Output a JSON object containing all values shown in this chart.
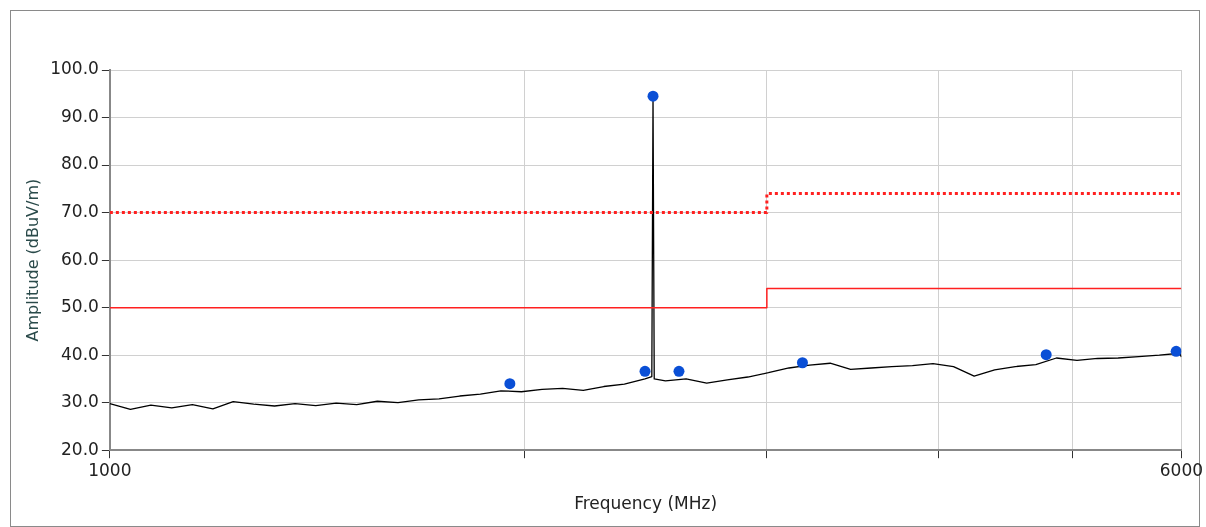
{
  "chart_data": {
    "type": "line",
    "xlabel": "Frequency (MHz)",
    "ylabel": "Amplitude (dBuV/m)",
    "log": "x",
    "grid": true,
    "legend": false,
    "xlim": [
      1000,
      6000
    ],
    "xticks": [
      1000,
      {
        "value": 2000,
        "label": null
      },
      {
        "value": 3000,
        "label": null
      },
      {
        "value": 4000,
        "label": null
      },
      {
        "value": 5000,
        "label": null
      },
      6000
    ],
    "ylim": [
      20,
      100
    ],
    "yticks": [
      {
        "value": 20,
        "label": "20.0"
      },
      {
        "value": 30,
        "label": "30.0"
      },
      {
        "value": 40,
        "label": "40.0"
      },
      {
        "value": 50,
        "label": "50.0"
      },
      {
        "value": 60,
        "label": "60.0"
      },
      {
        "value": 70,
        "label": "70.0"
      },
      {
        "value": 80,
        "label": "80.0"
      },
      {
        "value": 90,
        "label": "90.0"
      },
      {
        "value": 100,
        "label": "100.0"
      }
    ],
    "series": [
      {
        "type": "step",
        "color": "#ff2020",
        "line_style": "dotted",
        "marker": "none",
        "x": [
          1000,
          3000,
          6000
        ],
        "values": [
          70,
          74,
          74
        ]
      },
      {
        "type": "step",
        "color": "#ff2020",
        "line_style": "solid",
        "marker": "none",
        "x": [
          1000,
          3000,
          6000
        ],
        "values": [
          50,
          54,
          54
        ]
      },
      {
        "color": "#000000",
        "line_style": "solid",
        "marker": "none",
        "x": [
          1000,
          1035,
          1071,
          1109,
          1148,
          1188,
          1229,
          1272,
          1317,
          1363,
          1411,
          1460,
          1511,
          1564,
          1619,
          1676,
          1734,
          1795,
          1858,
          1923,
          1990,
          2060,
          2132,
          2207,
          2284,
          2364,
          2447,
          2475,
          2480,
          2485,
          2532,
          2621,
          2713,
          2808,
          2906,
          3008,
          3113,
          3222,
          3335,
          3451,
          3572,
          3697,
          3827,
          3961,
          4099,
          4243,
          4391,
          4545,
          4704,
          4869,
          5039,
          5216,
          5398,
          5587,
          5783,
          5985,
          6000
        ],
        "values": [
          29.8,
          28.6,
          29.5,
          28.9,
          29.6,
          28.7,
          30.2,
          29.7,
          29.3,
          29.8,
          29.4,
          29.9,
          29.6,
          30.3,
          30.0,
          30.6,
          30.8,
          31.4,
          31.8,
          32.5,
          32.3,
          32.8,
          33.0,
          32.6,
          33.4,
          33.9,
          35.0,
          35.5,
          94.5,
          35.0,
          34.6,
          35.0,
          34.1,
          34.8,
          35.4,
          36.3,
          37.3,
          37.9,
          38.3,
          37.0,
          37.3,
          37.6,
          37.8,
          38.2,
          37.6,
          35.6,
          36.9,
          37.6,
          38.0,
          39.4,
          38.9,
          39.3,
          39.4,
          39.7,
          40.0,
          40.4,
          39.6
        ]
      },
      {
        "type": "scatter",
        "color": "#0a4fd6",
        "marker": "circle",
        "x": [
          1952,
          2447,
          2480,
          2590,
          3184,
          4786,
          5948
        ],
        "values": [
          34.0,
          36.6,
          94.5,
          36.6,
          38.4,
          40.1,
          40.8
        ]
      }
    ]
  }
}
